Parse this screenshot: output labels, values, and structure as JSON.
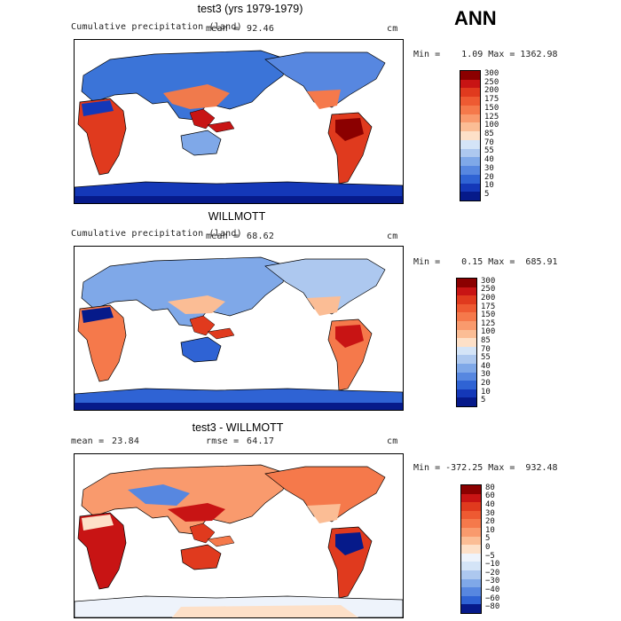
{
  "season": "ANN",
  "panels": [
    {
      "title": "test3 (yrs 1979-1979)",
      "left_label": "Cumulative precipitation (land)",
      "mean_label": "mean =",
      "mean_value": "92.46",
      "units": "cm",
      "minmax": "Min =    1.09 Max = 1362.98",
      "colorbar": {
        "ticks": [
          "300",
          "250",
          "200",
          "175",
          "150",
          "125",
          "100",
          "85",
          "70",
          "55",
          "40",
          "30",
          "20",
          "10",
          "5"
        ],
        "colors": [
          "#8b0000",
          "#c81414",
          "#e03a1e",
          "#ee5a32",
          "#f5794b",
          "#f99a6d",
          "#fbbd95",
          "#fde0c8",
          "#d4e4f7",
          "#adc8ef",
          "#7fa8e8",
          "#5787e0",
          "#2f63d4",
          "#1438b8",
          "#061a8a"
        ]
      },
      "map_fill": "ocean white; land shaded by precipitation"
    },
    {
      "title": "WILLMOTT",
      "left_label": "Cumulative precipitation (land)",
      "mean_label": "mean =",
      "mean_value": "68.62",
      "units": "cm",
      "minmax": "Min =    0.15 Max =  685.91",
      "colorbar": {
        "ticks": [
          "300",
          "250",
          "200",
          "175",
          "150",
          "125",
          "100",
          "85",
          "70",
          "55",
          "40",
          "30",
          "20",
          "10",
          "5"
        ],
        "colors": [
          "#8b0000",
          "#c81414",
          "#e03a1e",
          "#ee5a32",
          "#f5794b",
          "#f99a6d",
          "#fbbd95",
          "#fde0c8",
          "#d4e4f7",
          "#adc8ef",
          "#7fa8e8",
          "#5787e0",
          "#2f63d4",
          "#1438b8",
          "#061a8a"
        ]
      }
    },
    {
      "title": "test3 - WILLMOTT",
      "left_label": "",
      "mean_label": "mean =",
      "mean_value": "23.84",
      "rmse_label": "rmse =",
      "rmse_value": "64.17",
      "units": "cm",
      "minmax": "Min = -372.25 Max =  932.48",
      "colorbar": {
        "ticks": [
          "80",
          "60",
          "40",
          "30",
          "20",
          "10",
          "5",
          "0",
          "−5",
          "−10",
          "−20",
          "−30",
          "−40",
          "−60",
          "−80"
        ],
        "colors": [
          "#8b0000",
          "#c81414",
          "#e03a1e",
          "#ee5a32",
          "#f5794b",
          "#f99a6d",
          "#fbbd95",
          "#fde0c8",
          "#eef3fb",
          "#d4e4f7",
          "#adc8ef",
          "#7fa8e8",
          "#5787e0",
          "#2f63d4",
          "#061a8a"
        ]
      }
    }
  ]
}
